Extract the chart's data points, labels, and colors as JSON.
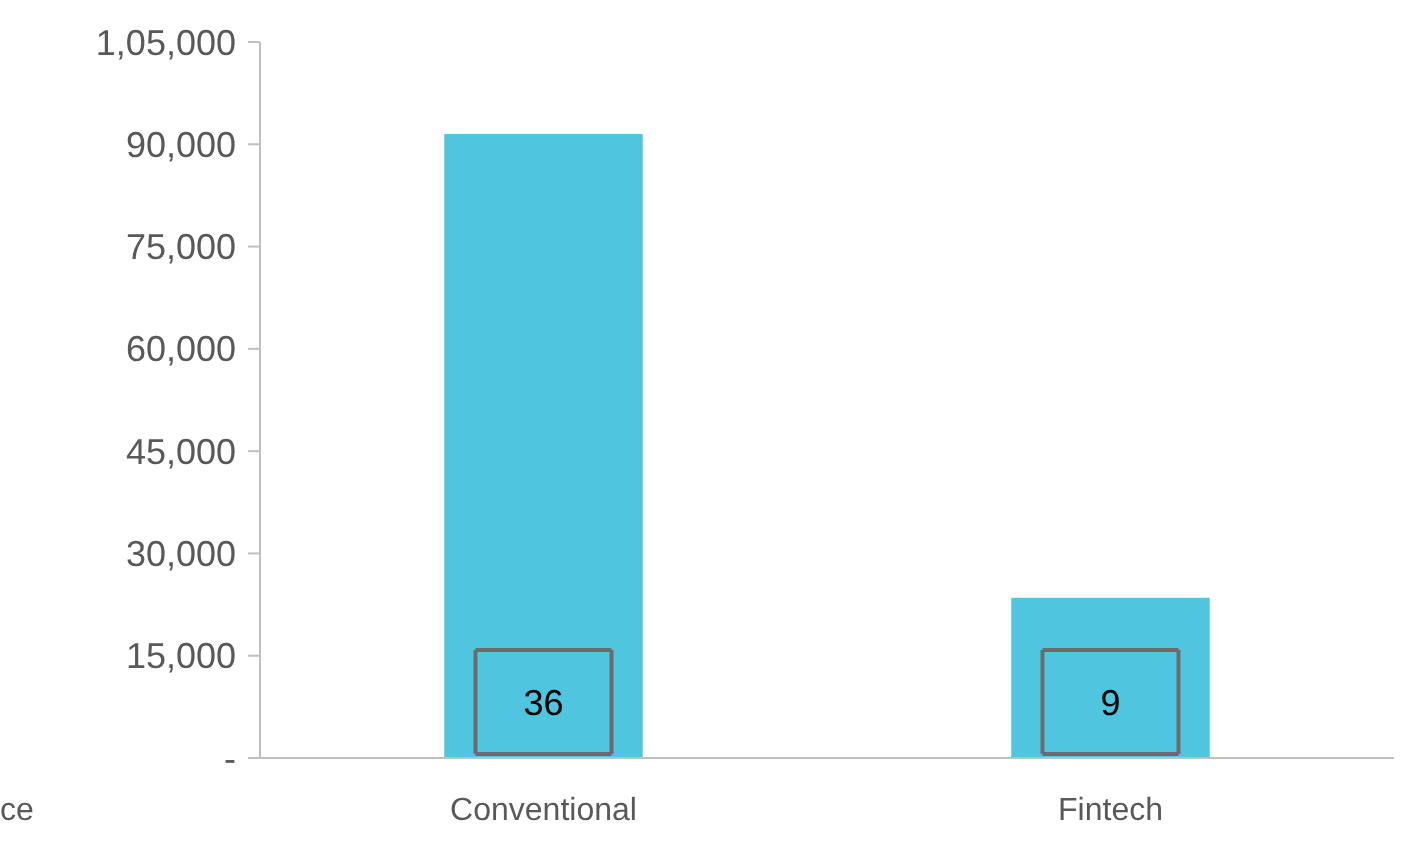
{
  "chart_data": {
    "type": "bar",
    "categories": [
      "Conventional",
      "Fintech"
    ],
    "values": [
      91500,
      23500
    ],
    "color": "#4fc5e0",
    "ylim": [
      0,
      105000
    ],
    "yticks": [
      {
        "value": 0,
        "label": "-"
      },
      {
        "value": 15000,
        "label": "15,000"
      },
      {
        "value": 30000,
        "label": "30,000"
      },
      {
        "value": 45000,
        "label": "45,000"
      },
      {
        "value": 60000,
        "label": "60,000"
      },
      {
        "value": 75000,
        "label": "75,000"
      },
      {
        "value": 90000,
        "label": "90,000"
      },
      {
        "value": 105000,
        "label": "1,05,000"
      }
    ],
    "annotations": [
      "36",
      "9",
      "ce"
    ],
    "grid": false
  }
}
